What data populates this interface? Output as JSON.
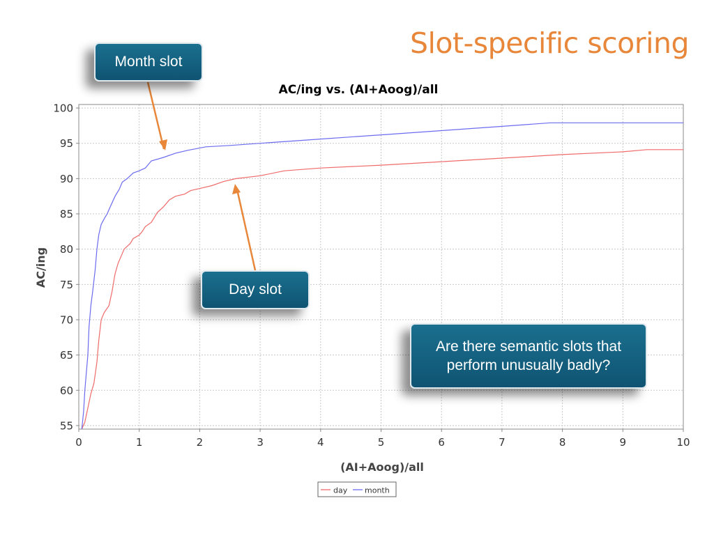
{
  "slide": {
    "title": "Slot-specific scoring"
  },
  "callouts": {
    "month": "Month slot",
    "day": "Day slot",
    "question": "Are there semantic slots that perform unusually badly?"
  },
  "colors": {
    "title": "#e8873a",
    "callout_fill": "#15607f",
    "arrow": "#e8873a",
    "day": "#f06a6a",
    "month": "#6b6bf0"
  },
  "chart_data": {
    "type": "line",
    "title": "AC/ing vs. (AI+Aoog)/all",
    "xlabel": "(AI+Aoog)/all",
    "ylabel": "AC/ing",
    "xlim": [
      0,
      10
    ],
    "ylim": [
      54.5,
      100.5
    ],
    "xticks": [
      0,
      1,
      2,
      3,
      4,
      5,
      6,
      7,
      8,
      9,
      10
    ],
    "yticks": [
      55,
      60,
      65,
      70,
      75,
      80,
      85,
      90,
      95,
      100
    ],
    "grid": true,
    "legend_position": "bottom-center",
    "series": [
      {
        "name": "day",
        "color": "#f06a6a",
        "points": [
          [
            0.05,
            54.5
          ],
          [
            0.1,
            55.5
          ],
          [
            0.15,
            57.5
          ],
          [
            0.2,
            59.5
          ],
          [
            0.25,
            61
          ],
          [
            0.3,
            64
          ],
          [
            0.33,
            67
          ],
          [
            0.37,
            70
          ],
          [
            0.42,
            71
          ],
          [
            0.5,
            72
          ],
          [
            0.55,
            74
          ],
          [
            0.6,
            76.5
          ],
          [
            0.65,
            78
          ],
          [
            0.7,
            79
          ],
          [
            0.75,
            80
          ],
          [
            0.85,
            80.8
          ],
          [
            0.9,
            81.5
          ],
          [
            1.0,
            82
          ],
          [
            1.05,
            82.5
          ],
          [
            1.1,
            83.2
          ],
          [
            1.2,
            83.8
          ],
          [
            1.3,
            85.2
          ],
          [
            1.4,
            86
          ],
          [
            1.5,
            87
          ],
          [
            1.6,
            87.5
          ],
          [
            1.75,
            87.8
          ],
          [
            1.85,
            88.3
          ],
          [
            2.0,
            88.6
          ],
          [
            2.2,
            89
          ],
          [
            2.4,
            89.6
          ],
          [
            2.6,
            90
          ],
          [
            3.0,
            90.4
          ],
          [
            3.4,
            91.1
          ],
          [
            4.0,
            91.5
          ],
          [
            5.0,
            91.9
          ],
          [
            6.0,
            92.4
          ],
          [
            7.0,
            92.9
          ],
          [
            8.0,
            93.4
          ],
          [
            9.0,
            93.8
          ],
          [
            9.4,
            94.1
          ],
          [
            10,
            94.1
          ]
        ]
      },
      {
        "name": "month",
        "color": "#6b6bf0",
        "points": [
          [
            0.05,
            54.5
          ],
          [
            0.08,
            57
          ],
          [
            0.1,
            60
          ],
          [
            0.12,
            62
          ],
          [
            0.15,
            65
          ],
          [
            0.17,
            69
          ],
          [
            0.2,
            72
          ],
          [
            0.23,
            74
          ],
          [
            0.27,
            77
          ],
          [
            0.3,
            80
          ],
          [
            0.33,
            82
          ],
          [
            0.37,
            83.5
          ],
          [
            0.42,
            84.3
          ],
          [
            0.47,
            85
          ],
          [
            0.52,
            86
          ],
          [
            0.6,
            87.5
          ],
          [
            0.67,
            88.5
          ],
          [
            0.72,
            89.5
          ],
          [
            0.8,
            90
          ],
          [
            0.9,
            90.8
          ],
          [
            1.0,
            91.1
          ],
          [
            1.1,
            91.5
          ],
          [
            1.2,
            92.5
          ],
          [
            1.4,
            93
          ],
          [
            1.6,
            93.6
          ],
          [
            1.8,
            94
          ],
          [
            2.1,
            94.5
          ],
          [
            2.5,
            94.7
          ],
          [
            3.0,
            95
          ],
          [
            4.0,
            95.6
          ],
          [
            5.0,
            96.2
          ],
          [
            6.0,
            96.8
          ],
          [
            7.0,
            97.4
          ],
          [
            7.8,
            97.9
          ],
          [
            8.0,
            97.9
          ],
          [
            10,
            97.9
          ]
        ]
      }
    ]
  }
}
